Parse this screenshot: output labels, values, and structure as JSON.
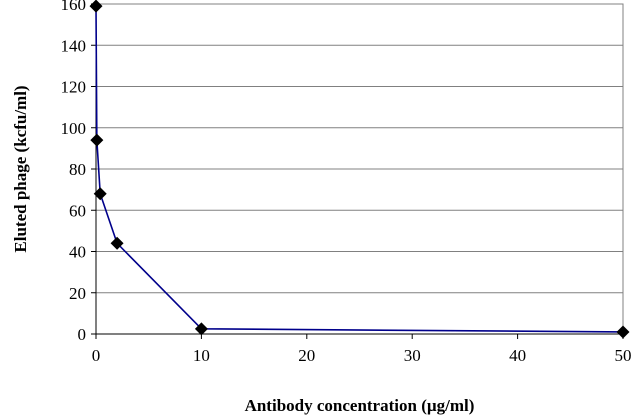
{
  "chart_data": {
    "type": "line",
    "title": "",
    "xlabel": "Antibody concentration (µg/ml)",
    "ylabel": "Eluted phage (kcfu/ml)",
    "xlim": [
      0,
      50
    ],
    "ylim": [
      0,
      160
    ],
    "xticks": [
      0,
      10,
      20,
      30,
      40,
      50
    ],
    "yticks": [
      0,
      20,
      40,
      60,
      80,
      100,
      120,
      140,
      160
    ],
    "grid": "horizontal",
    "legend": "none",
    "series": [
      {
        "x": [
          0,
          0.08,
          0.4,
          2,
          10,
          50
        ],
        "y": [
          159,
          94,
          68,
          44,
          2.5,
          1
        ],
        "line_color": "#00008b",
        "marker": "diamond",
        "marker_color": "#000000"
      }
    ]
  }
}
